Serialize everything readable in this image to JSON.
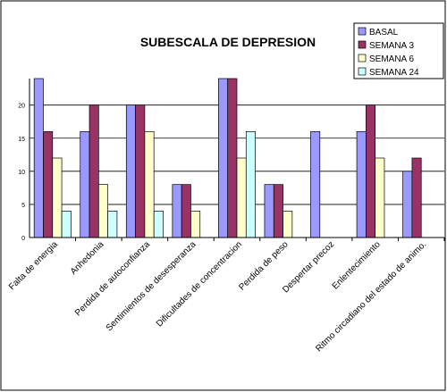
{
  "chart_data": {
    "type": "bar",
    "title": "SUBESCALA DE DEPRESION",
    "categories": [
      "Falta de energia",
      "Anhedonia",
      "Perdida de autoconfianza",
      "Sentimientos de desesperanza",
      "Dificultades de concentracion",
      "Perdida de peso",
      "Despertar precoz",
      "Enlentecimiento",
      "Ritmo circadiano del estado de animo."
    ],
    "series": [
      {
        "name": "BASAL",
        "color": "#9999ff",
        "values": [
          24,
          16,
          20,
          8,
          24,
          8,
          16,
          16,
          10
        ]
      },
      {
        "name": "SEMANA 3",
        "color": "#993366",
        "values": [
          16,
          20,
          20,
          8,
          24,
          8,
          0,
          20,
          12
        ]
      },
      {
        "name": "SEMANA 6",
        "color": "#ffffcc",
        "values": [
          12,
          8,
          16,
          4,
          12,
          4,
          0,
          12,
          0
        ]
      },
      {
        "name": "SEMANA 24",
        "color": "#ccffff",
        "values": [
          4,
          4,
          4,
          0,
          16,
          0,
          0,
          0,
          0
        ]
      }
    ],
    "ylim": [
      0,
      24
    ],
    "yticks": [
      0,
      5,
      10,
      15,
      20
    ],
    "grid": true,
    "legend": "top-right"
  }
}
